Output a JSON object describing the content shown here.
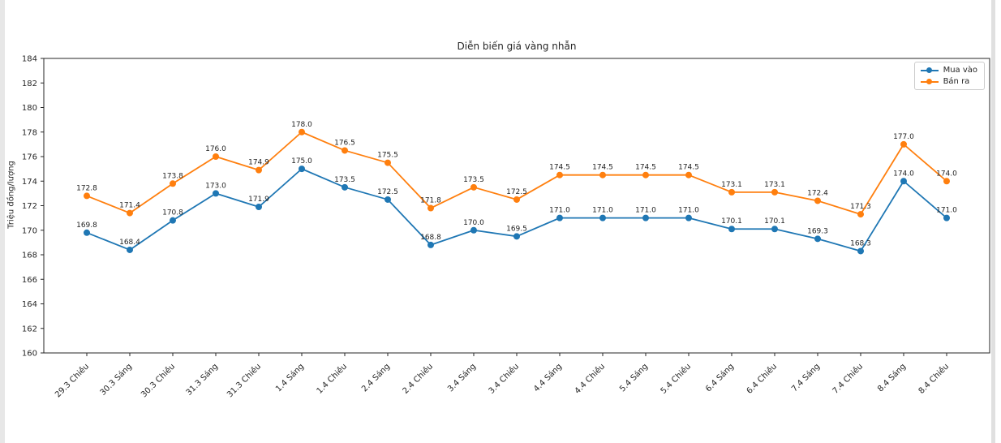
{
  "page": {
    "background": "#ffffff",
    "side_border_color": "#e5e5e5",
    "axis_color": "#262626",
    "tick_label_color": "#262626",
    "point_label_color": "#1f1f1f",
    "legend_border_color": "#cccccc"
  },
  "chart_data": {
    "type": "line",
    "title": "Diễn biến giá vàng nhẫn",
    "xlabel": "",
    "ylabel": "Triệu đồng/lượng",
    "categories": [
      "29.3 Chiều",
      "30.3 Sáng",
      "30.3 Chiều",
      "31.3 Sáng",
      "31.3 Chiều",
      "1.4 Sáng",
      "1.4 Chiều",
      "2.4 Sáng",
      "2.4 Chiều",
      "3.4 Sáng",
      "3.4 Chiều",
      "4.4 Sáng",
      "4.4 Chiều",
      "5.4 Sáng",
      "5.4 Chiều",
      "6.4 Sáng",
      "6.4 Chiều",
      "7.4 Sáng",
      "7.4 Chiều",
      "8.4 Sáng",
      "8.4 Chiều"
    ],
    "series": [
      {
        "name": "Mua vào",
        "color": "#1f77b4",
        "values": [
          169.8,
          168.4,
          170.8,
          173.0,
          171.9,
          175.0,
          173.5,
          172.5,
          168.8,
          170.0,
          169.5,
          171.0,
          171.0,
          171.0,
          171.0,
          170.1,
          170.1,
          169.3,
          168.3,
          174.0,
          171.0
        ]
      },
      {
        "name": "Bán ra",
        "color": "#ff7f0e",
        "values": [
          172.8,
          171.4,
          173.8,
          176.0,
          174.9,
          178.0,
          176.5,
          175.5,
          171.8,
          173.5,
          172.5,
          174.5,
          174.5,
          174.5,
          174.5,
          173.1,
          173.1,
          172.4,
          171.3,
          177.0,
          174.0
        ]
      }
    ],
    "ylim": [
      160,
      184
    ],
    "ytick_step": 2,
    "grid": false,
    "legend_position": "upper right",
    "point_labels": true,
    "point_label_decimals": 1,
    "xtick_rotation": 45
  }
}
